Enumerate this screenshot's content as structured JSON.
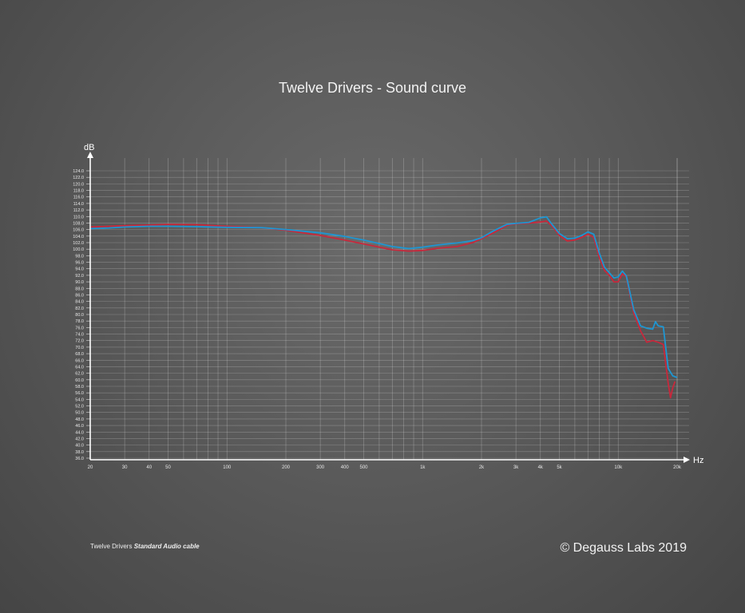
{
  "footer": {
    "product": "Twelve Drivers",
    "cable": "Standard Audio cable",
    "copyright": "© Degauss Labs 2019"
  },
  "chart_data": {
    "type": "line",
    "title": "Twelve Drivers - Sound curve",
    "xlabel": "Hz",
    "ylabel": "dB",
    "x_scale": "log",
    "xlim": [
      20,
      20000
    ],
    "ylim": [
      36,
      126
    ],
    "grid": true,
    "x_tick_labels": [
      {
        "value": 20,
        "label": "20"
      },
      {
        "value": 30,
        "label": "30"
      },
      {
        "value": 40,
        "label": "40"
      },
      {
        "value": 50,
        "label": "50"
      },
      {
        "value": 100,
        "label": "100"
      },
      {
        "value": 200,
        "label": "200"
      },
      {
        "value": 300,
        "label": "300"
      },
      {
        "value": 400,
        "label": "400"
      },
      {
        "value": 500,
        "label": "500"
      },
      {
        "value": 1000,
        "label": "1k"
      },
      {
        "value": 2000,
        "label": "2k"
      },
      {
        "value": 3000,
        "label": "3k"
      },
      {
        "value": 4000,
        "label": "4k"
      },
      {
        "value": 5000,
        "label": "5k"
      },
      {
        "value": 10000,
        "label": "10k"
      },
      {
        "value": 20000,
        "label": "20k"
      }
    ],
    "y_tick_labels": [
      "36.0",
      "38.0",
      "40.0",
      "42.0",
      "44.0",
      "46.0",
      "48.0",
      "50.0",
      "52.0",
      "54.0",
      "56.0",
      "58.0",
      "60.0",
      "62.0",
      "64.0",
      "66.0",
      "68.0",
      "70.0",
      "72.0",
      "74.0",
      "76.0",
      "78.0",
      "80.0",
      "82.0",
      "84.0",
      "86.0",
      "88.0",
      "90.0",
      "92.0",
      "94.0",
      "96.0",
      "98.0",
      "100.0",
      "102.0",
      "104.0",
      "106.0",
      "108.0",
      "110.0",
      "112.0",
      "114.0",
      "116.0",
      "118.0",
      "120.0",
      "122.0",
      "124.0"
    ],
    "series": [
      {
        "color": "#c8283c",
        "points": [
          [
            20,
            106.8
          ],
          [
            25,
            107.0
          ],
          [
            30,
            107.2
          ],
          [
            40,
            107.4
          ],
          [
            50,
            107.6
          ],
          [
            70,
            107.5
          ],
          [
            100,
            107.0
          ],
          [
            150,
            106.6
          ],
          [
            200,
            105.8
          ],
          [
            300,
            104.2
          ],
          [
            400,
            102.8
          ],
          [
            500,
            101.6
          ],
          [
            700,
            99.8
          ],
          [
            850,
            99.4
          ],
          [
            1000,
            99.6
          ],
          [
            1200,
            100.3
          ],
          [
            1500,
            100.8
          ],
          [
            1800,
            102.0
          ],
          [
            2000,
            103.2
          ],
          [
            2300,
            105.0
          ],
          [
            2700,
            107.3
          ],
          [
            3000,
            107.8
          ],
          [
            3500,
            108.0
          ],
          [
            4000,
            108.3
          ],
          [
            4300,
            108.6
          ],
          [
            4600,
            107.0
          ],
          [
            5000,
            104.2
          ],
          [
            5500,
            102.5
          ],
          [
            6000,
            102.8
          ],
          [
            6500,
            103.6
          ],
          [
            7000,
            104.6
          ],
          [
            7500,
            103.6
          ],
          [
            8000,
            97.5
          ],
          [
            8500,
            93.5
          ],
          [
            9000,
            92.0
          ],
          [
            9500,
            90.0
          ],
          [
            10000,
            90.0
          ],
          [
            10500,
            92.5
          ],
          [
            11000,
            91.5
          ],
          [
            12000,
            80.5
          ],
          [
            13000,
            75.0
          ],
          [
            14000,
            71.5
          ],
          [
            15000,
            72.0
          ],
          [
            16000,
            71.5
          ],
          [
            17000,
            70.8
          ],
          [
            18000,
            59.0
          ],
          [
            18500,
            54.5
          ],
          [
            19000,
            57.5
          ],
          [
            19500,
            59.5
          ]
        ]
      },
      {
        "color": "#1e96d2",
        "points": [
          [
            20,
            106.3
          ],
          [
            25,
            106.5
          ],
          [
            30,
            106.8
          ],
          [
            40,
            107.0
          ],
          [
            50,
            107.0
          ],
          [
            70,
            106.9
          ],
          [
            100,
            106.7
          ],
          [
            150,
            106.6
          ],
          [
            200,
            106.0
          ],
          [
            300,
            105.0
          ],
          [
            400,
            103.9
          ],
          [
            500,
            102.8
          ],
          [
            700,
            100.8
          ],
          [
            850,
            100.2
          ],
          [
            1000,
            100.6
          ],
          [
            1200,
            101.3
          ],
          [
            1500,
            101.9
          ],
          [
            1800,
            102.6
          ],
          [
            2000,
            103.5
          ],
          [
            2300,
            105.6
          ],
          [
            2700,
            107.6
          ],
          [
            3000,
            107.9
          ],
          [
            3500,
            108.2
          ],
          [
            4000,
            109.6
          ],
          [
            4300,
            109.9
          ],
          [
            4600,
            107.5
          ],
          [
            5000,
            104.8
          ],
          [
            5500,
            103.2
          ],
          [
            6000,
            103.4
          ],
          [
            6500,
            104.2
          ],
          [
            7000,
            105.3
          ],
          [
            7500,
            104.6
          ],
          [
            8000,
            98.8
          ],
          [
            8500,
            94.5
          ],
          [
            9000,
            92.8
          ],
          [
            9500,
            91.2
          ],
          [
            10000,
            91.5
          ],
          [
            10500,
            93.3
          ],
          [
            11000,
            91.8
          ],
          [
            12000,
            81.5
          ],
          [
            13000,
            76.5
          ],
          [
            14000,
            75.8
          ],
          [
            15000,
            75.5
          ],
          [
            15500,
            77.8
          ],
          [
            16000,
            76.5
          ],
          [
            17000,
            76.2
          ],
          [
            18000,
            63.5
          ],
          [
            19000,
            61.2
          ],
          [
            20000,
            60.7
          ]
        ]
      }
    ]
  }
}
